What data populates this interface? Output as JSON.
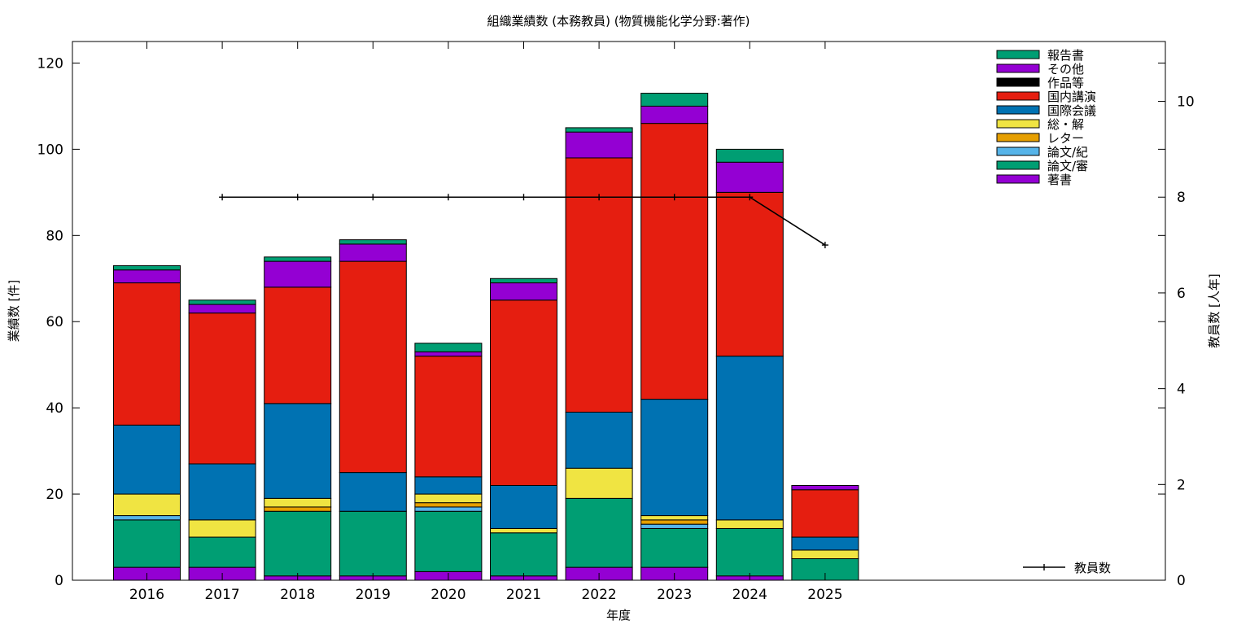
{
  "chart_data": {
    "type": "bar",
    "stacked": true,
    "title": "組織業績数 (本務教員) (物質機能化学分野:著作)",
    "xlabel": "年度",
    "ylabel": "業績数 [件]",
    "y2label": "教員数 [人年]",
    "ylim": [
      0,
      125
    ],
    "y2lim": [
      0,
      11.25
    ],
    "yticks": [
      "0",
      "20",
      "40",
      "60",
      "80",
      "100",
      "120"
    ],
    "y2ticks": [
      "0",
      "2",
      "4",
      "6",
      "8",
      "10"
    ],
    "grid": false,
    "legend_position": "top-right",
    "categories": [
      "2016",
      "2017",
      "2018",
      "2019",
      "2020",
      "2021",
      "2022",
      "2023",
      "2024",
      "2025"
    ],
    "series": [
      {
        "name": "著書",
        "color": "#9400d3",
        "values": [
          3,
          3,
          1,
          1,
          2,
          1,
          3,
          3,
          1,
          0
        ]
      },
      {
        "name": "論文/審",
        "color": "#009e73",
        "values": [
          11,
          7,
          15,
          15,
          14,
          10,
          16,
          9,
          11,
          5
        ]
      },
      {
        "name": "論文/紀",
        "color": "#56b4e9",
        "values": [
          1,
          0,
          0,
          0,
          1,
          0,
          0,
          1,
          0,
          0
        ]
      },
      {
        "name": "レター",
        "color": "#e69f00",
        "values": [
          0,
          0,
          1,
          0,
          1,
          0,
          0,
          1,
          0,
          0
        ]
      },
      {
        "name": "総・解",
        "color": "#f0e442",
        "values": [
          5,
          4,
          2,
          0,
          2,
          1,
          7,
          1,
          2,
          2
        ]
      },
      {
        "name": "国際会議",
        "color": "#0072b2",
        "values": [
          16,
          13,
          22,
          9,
          4,
          10,
          13,
          27,
          38,
          3
        ]
      },
      {
        "name": "国内講演",
        "color": "#e51e10",
        "values": [
          33,
          35,
          27,
          49,
          28,
          43,
          59,
          64,
          38,
          11
        ]
      },
      {
        "name": "作品等",
        "color": "#000000",
        "values": [
          0,
          0,
          0,
          0,
          0,
          0,
          0,
          0,
          0,
          0
        ]
      },
      {
        "name": "その他",
        "color": "#9400d3",
        "values": [
          3,
          2,
          6,
          4,
          1,
          4,
          6,
          4,
          7,
          1
        ]
      },
      {
        "name": "報告書",
        "color": "#009e73",
        "values": [
          1,
          1,
          1,
          1,
          2,
          1,
          1,
          3,
          3,
          0
        ]
      }
    ],
    "line_series": {
      "name": "教員数",
      "axis": "y2",
      "color": "#000000",
      "x": [
        "2017",
        "2018",
        "2019",
        "2020",
        "2021",
        "2022",
        "2023",
        "2024",
        "2025"
      ],
      "values": [
        8,
        8,
        8,
        8,
        8,
        8,
        8,
        8,
        7
      ]
    }
  }
}
